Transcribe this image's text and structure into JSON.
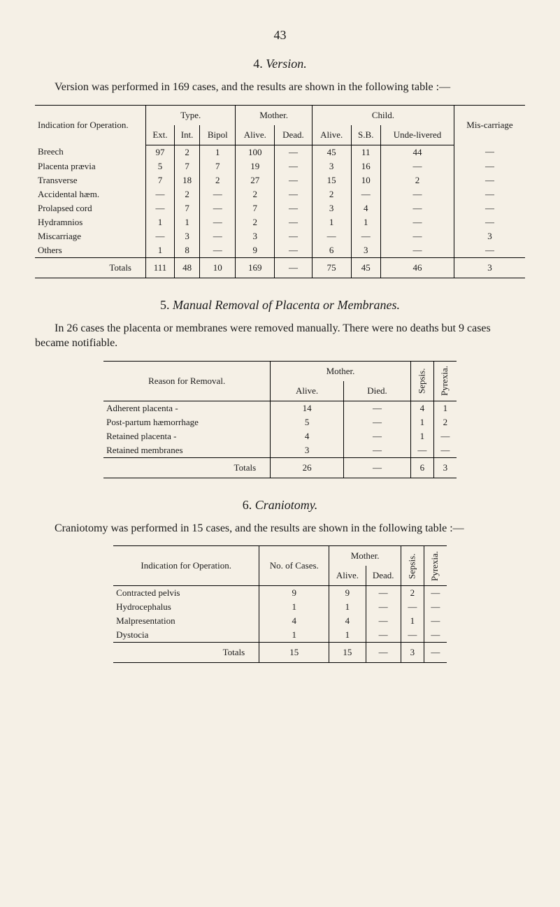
{
  "page_number": "43",
  "section4": {
    "title_num": "4.",
    "title_text": "Version.",
    "intro": "Version was performed in 169 cases, and the results are shown in the following table :—",
    "headers": {
      "indication": "Indication for Operation.",
      "type": "Type.",
      "mother": "Mother.",
      "child": "Child.",
      "mis": "Mis-carriage",
      "ext": "Ext.",
      "int": "Int.",
      "bipol": "Bipol",
      "alive": "Alive.",
      "dead": "Dead.",
      "alive2": "Alive.",
      "sb": "S.B.",
      "unde": "Unde-livered"
    },
    "rows": [
      {
        "label": "Breech",
        "ext": "97",
        "int": "2",
        "bipol": "1",
        "malive": "100",
        "mdead": "—",
        "calive": "45",
        "sb": "11",
        "unde": "44",
        "mis": "—"
      },
      {
        "label": "Placenta prævia",
        "ext": "5",
        "int": "7",
        "bipol": "7",
        "malive": "19",
        "mdead": "—",
        "calive": "3",
        "sb": "16",
        "unde": "—",
        "mis": "—"
      },
      {
        "label": "Transverse",
        "ext": "7",
        "int": "18",
        "bipol": "2",
        "malive": "27",
        "mdead": "—",
        "calive": "15",
        "sb": "10",
        "unde": "2",
        "mis": "—"
      },
      {
        "label": "Accidental hæm.",
        "ext": "—",
        "int": "2",
        "bipol": "—",
        "malive": "2",
        "mdead": "—",
        "calive": "2",
        "sb": "—",
        "unde": "—",
        "mis": "—"
      },
      {
        "label": "Prolapsed cord",
        "ext": "—",
        "int": "7",
        "bipol": "—",
        "malive": "7",
        "mdead": "—",
        "calive": "3",
        "sb": "4",
        "unde": "—",
        "mis": "—"
      },
      {
        "label": "Hydramnios",
        "ext": "1",
        "int": "1",
        "bipol": "—",
        "malive": "2",
        "mdead": "—",
        "calive": "1",
        "sb": "1",
        "unde": "—",
        "mis": "—"
      },
      {
        "label": "Miscarriage",
        "ext": "—",
        "int": "3",
        "bipol": "—",
        "malive": "3",
        "mdead": "—",
        "calive": "—",
        "sb": "—",
        "unde": "—",
        "mis": "3"
      },
      {
        "label": "Others",
        "ext": "1",
        "int": "8",
        "bipol": "—",
        "malive": "9",
        "mdead": "—",
        "calive": "6",
        "sb": "3",
        "unde": "—",
        "mis": "—"
      }
    ],
    "totals": {
      "label": "Totals",
      "ext": "111",
      "int": "48",
      "bipol": "10",
      "malive": "169",
      "mdead": "—",
      "calive": "75",
      "sb": "45",
      "unde": "46",
      "mis": "3"
    }
  },
  "section5": {
    "title_num": "5.",
    "title_text": "Manual Removal of Placenta or Membranes.",
    "intro": "In 26 cases the placenta or membranes were removed manually. There were no deaths but 9 cases became notifiable.",
    "headers": {
      "reason": "Reason for Removal.",
      "mother": "Mother.",
      "alive": "Alive.",
      "died": "Died.",
      "sepsis": "Sepsis.",
      "pyrexia": "Pyrexia."
    },
    "rows": [
      {
        "label": "Adherent placenta -",
        "alive": "14",
        "died": "—",
        "sepsis": "4",
        "pyrexia": "1"
      },
      {
        "label": "Post-partum hæmorrhage",
        "alive": "5",
        "died": "—",
        "sepsis": "1",
        "pyrexia": "2"
      },
      {
        "label": "Retained placenta -",
        "alive": "4",
        "died": "—",
        "sepsis": "1",
        "pyrexia": "—"
      },
      {
        "label": "Retained membranes",
        "alive": "3",
        "died": "—",
        "sepsis": "—",
        "pyrexia": "—"
      }
    ],
    "totals": {
      "label": "Totals",
      "alive": "26",
      "died": "—",
      "sepsis": "6",
      "pyrexia": "3"
    }
  },
  "section6": {
    "title_num": "6.",
    "title_text": "Craniotomy.",
    "intro": "Craniotomy was performed in 15 cases, and the results are shown in the following table :—",
    "headers": {
      "indication": "Indication for Operation.",
      "no_cases": "No. of Cases.",
      "mother": "Mother.",
      "alive": "Alive.",
      "dead": "Dead.",
      "sepsis": "Sepsis.",
      "pyrexia": "Pyrexia."
    },
    "rows": [
      {
        "label": "Contracted pelvis",
        "no": "9",
        "alive": "9",
        "dead": "—",
        "sepsis": "2",
        "pyrexia": "—"
      },
      {
        "label": "Hydrocephalus",
        "no": "1",
        "alive": "1",
        "dead": "—",
        "sepsis": "—",
        "pyrexia": "—"
      },
      {
        "label": "Malpresentation",
        "no": "4",
        "alive": "4",
        "dead": "—",
        "sepsis": "1",
        "pyrexia": "—"
      },
      {
        "label": "Dystocia",
        "no": "1",
        "alive": "1",
        "dead": "—",
        "sepsis": "—",
        "pyrexia": "—"
      }
    ],
    "totals": {
      "label": "Totals",
      "no": "15",
      "alive": "15",
      "dead": "—",
      "sepsis": "3",
      "pyrexia": "—"
    }
  }
}
